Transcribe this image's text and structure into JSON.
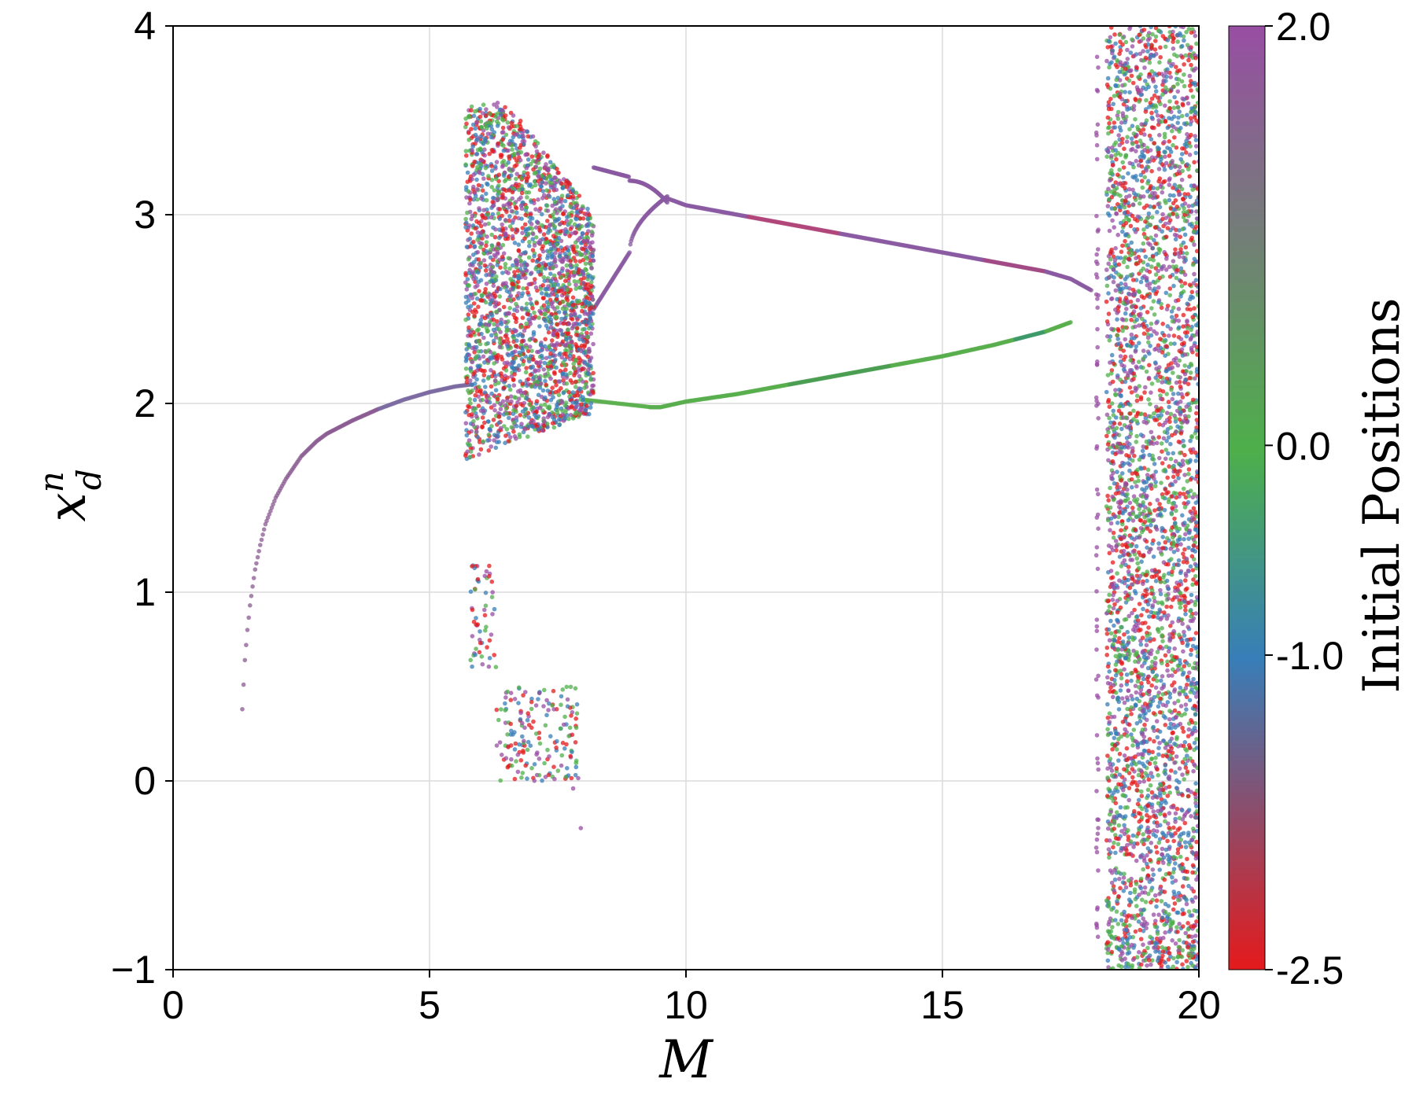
{
  "chart_data": {
    "type": "scatter",
    "xlabel": "M",
    "ylabel_base": "x",
    "ylabel_sup": "n",
    "ylabel_sub": "d",
    "xlim": [
      0,
      20
    ],
    "ylim": [
      -1,
      4
    ],
    "xticks": [
      0,
      5,
      10,
      15,
      20
    ],
    "yticks": [
      -1,
      0,
      1,
      2,
      3,
      4
    ],
    "xtick_labels": [
      "0",
      "5",
      "10",
      "15",
      "20"
    ],
    "ytick_labels": [
      "−1",
      "0",
      "1",
      "2",
      "3",
      "4"
    ],
    "grid": true,
    "colorbar": {
      "label": "Initial Positions",
      "range": [
        -2.5,
        2.0
      ],
      "ticks": [
        2.0,
        0.0,
        -1.0,
        -2.5
      ],
      "tick_labels": [
        "2.0",
        "0.0",
        "-1.0",
        "-2.5"
      ],
      "colors": [
        "#e41a1c",
        "#377eb8",
        "#4daf4a",
        "#984ea3"
      ]
    },
    "series": [
      {
        "x": [
          1.35,
          1.4,
          1.45,
          1.5,
          1.55,
          1.6,
          1.7,
          1.8,
          2.0,
          2.2,
          2.5,
          2.8,
          3.0,
          3.5,
          4.0,
          4.5,
          5.0,
          5.5,
          5.8
        ],
        "y": [
          0.38,
          0.64,
          0.8,
          0.93,
          1.03,
          1.12,
          1.25,
          1.36,
          1.5,
          1.6,
          1.72,
          1.8,
          1.84,
          1.91,
          1.97,
          2.02,
          2.06,
          2.09,
          2.1
        ]
      },
      {
        "x": [
          8.6,
          9.0,
          9.5,
          10.0,
          11.0,
          12.0,
          13.0,
          14.0,
          15.0,
          16.0,
          17.0,
          17.5,
          17.9
        ],
        "y": [
          3.25,
          3.15,
          3.1,
          3.05,
          3.0,
          2.95,
          2.9,
          2.85,
          2.8,
          2.75,
          2.7,
          2.66,
          2.6
        ]
      },
      {
        "x": [
          8.6,
          9.0,
          9.5,
          10.0,
          11.0,
          12.0,
          13.0,
          14.0,
          15.0,
          16.0,
          17.0,
          17.5
        ],
        "y": [
          1.98,
          1.98,
          1.98,
          2.01,
          2.05,
          2.1,
          2.15,
          2.2,
          2.25,
          2.31,
          2.38,
          2.43
        ]
      }
    ]
  }
}
